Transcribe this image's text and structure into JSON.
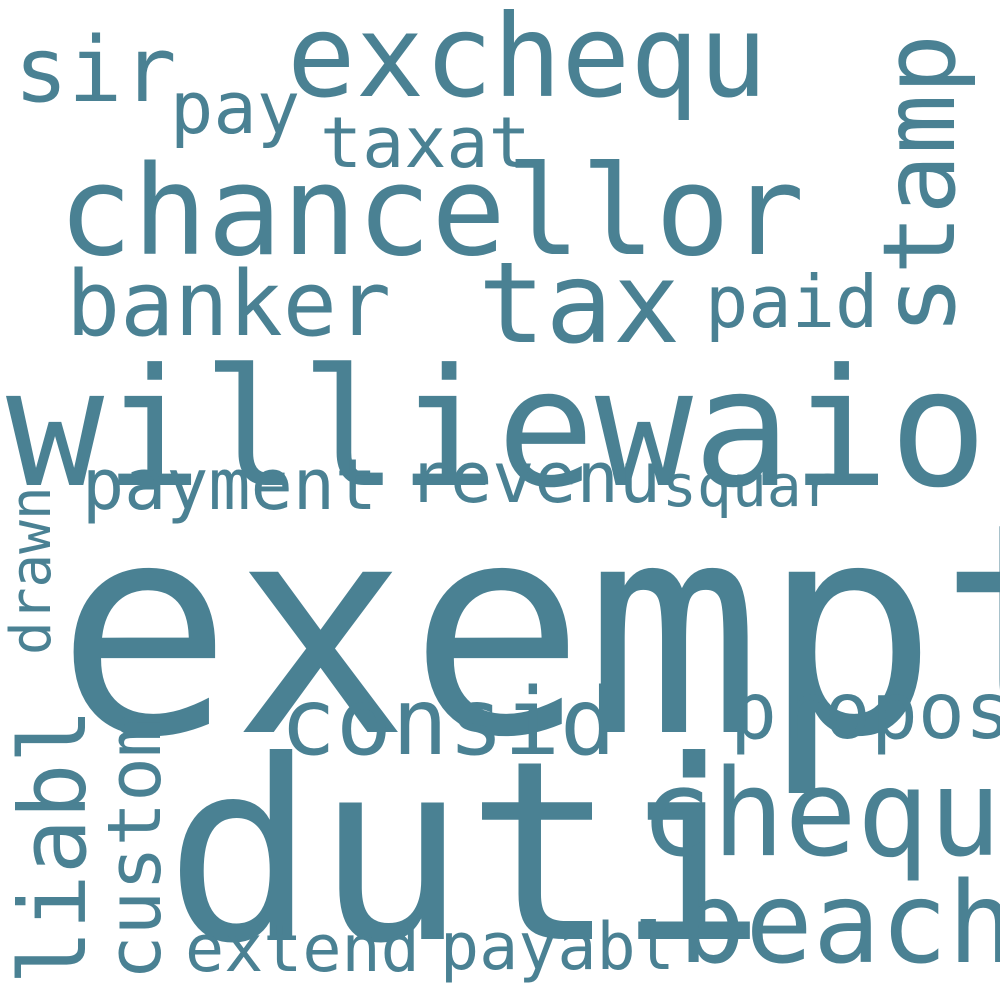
{
  "color": "#4a8193",
  "words": {
    "exempt": "exempt",
    "duti": "duti",
    "williewaiola": "williewaiola",
    "chancellor": "chancellor",
    "exchequ": "exchequ",
    "sir": "sir",
    "pay": "pay",
    "taxat": "taxat",
    "stamp": "stamp",
    "banker": "banker",
    "tax": "tax",
    "paid": "paid",
    "payment": "payment",
    "revenu": "revenu",
    "squar": "squar",
    "drawn": "drawn",
    "consid": "consid",
    "propos": "propos",
    "chequ": "chequ",
    "liabl": "liabl",
    "custom": "custom",
    "beach": "beach",
    "extend": "extend",
    "payabl": "payabl"
  }
}
